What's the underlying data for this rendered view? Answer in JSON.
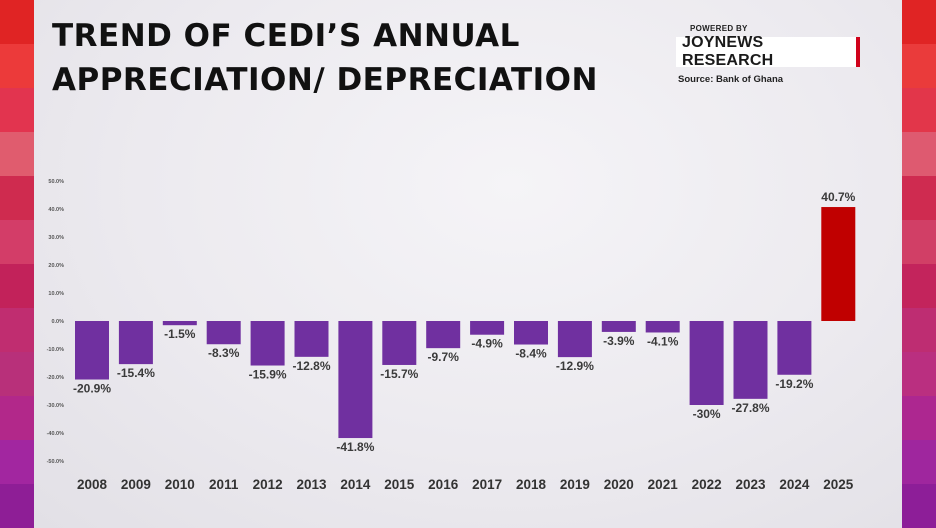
{
  "header": {
    "title_line1": "TREND OF CEDI’S ANNUAL",
    "title_line2": "APPRECIATION/ DEPRECIATION",
    "powered_by": "POWERED BY",
    "brand": "JOYNEWS RESEARCH",
    "source": "Source: Bank of Ghana"
  },
  "colors": {
    "negative_bar": "#7030a0",
    "positive_bar": "#c00000",
    "frame_left": [
      "#e02424",
      "#ec3a3a",
      "#e2344f",
      "#e05c6e",
      "#cf2b4f",
      "#d33d68",
      "#c2225a",
      "#c02d70",
      "#b8307a",
      "#b2288a",
      "#a226a0",
      "#8e1e96"
    ],
    "frame_right": [
      "#e02424",
      "#ea3b3b",
      "#e2364a",
      "#de5a70",
      "#cf2b50",
      "#d13f66",
      "#c3245c",
      "#be2d72",
      "#ba2f80",
      "#ad2790",
      "#9f269e",
      "#8d1e98"
    ]
  },
  "chart_data": {
    "type": "bar",
    "title": "TREND OF CEDI’S ANNUAL APPRECIATION/ DEPRECIATION",
    "categories": [
      "2008",
      "2009",
      "2010",
      "2011",
      "2012",
      "2013",
      "2014",
      "2015",
      "2016",
      "2017",
      "2018",
      "2019",
      "2020",
      "2021",
      "2022",
      "2023",
      "2024",
      "2025"
    ],
    "values": [
      -20.9,
      -15.4,
      -1.5,
      -8.3,
      -15.9,
      -12.8,
      -41.8,
      -15.7,
      -9.7,
      -4.9,
      -8.4,
      -12.9,
      -3.9,
      -4.1,
      -30,
      -27.8,
      -19.2,
      40.7
    ],
    "data_labels": [
      "-20.9%",
      "-15.4%",
      "-1.5%",
      "-8.3%",
      "-15.9%",
      "-12.8%",
      "-41.8%",
      "-15.7%",
      "-9.7%",
      "-4.9%",
      "-8.4%",
      "-12.9%",
      "-3.9%",
      "-4.1%",
      "-30%",
      "-27.8%",
      "-19.2%",
      "40.7%"
    ],
    "ylim": [
      -50,
      50
    ],
    "y_ticks": [
      50,
      40,
      30,
      20,
      10,
      0,
      -10,
      -20,
      -30,
      -40,
      -50
    ],
    "y_tick_labels": [
      "50.0%",
      "40.0%",
      "30.0%",
      "20.0%",
      "10.0%",
      "0.0%",
      "-10.0%",
      "-20.0%",
      "-30.0%",
      "-40.0%",
      "-50.0%"
    ],
    "xlabel": "",
    "ylabel": "",
    "grid": false,
    "legend": "none"
  }
}
